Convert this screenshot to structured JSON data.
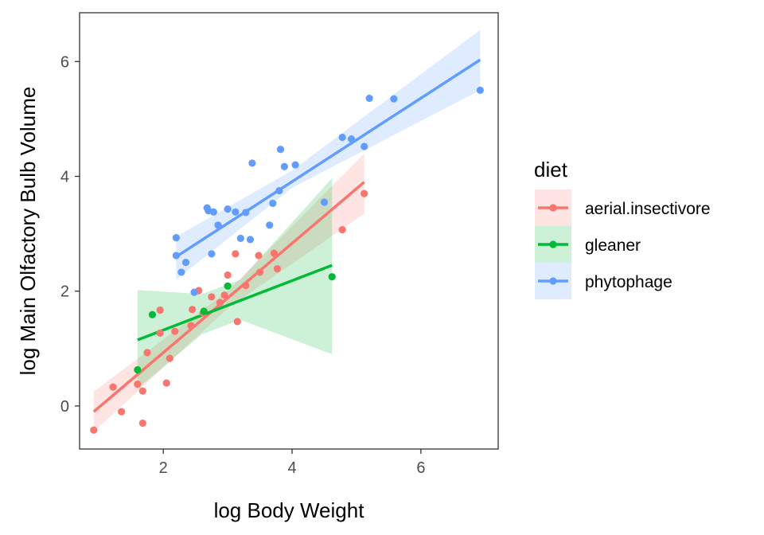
{
  "chart_data": {
    "type": "scatter",
    "xlabel": "log Body Weight",
    "ylabel": "log Main Olfactory Bulb Volume",
    "xlim": [
      0.7,
      7.2
    ],
    "ylim": [
      -0.75,
      6.85
    ],
    "xticks": [
      2,
      4,
      6
    ],
    "yticks": [
      0,
      2,
      4,
      6
    ],
    "grid": false,
    "legend": {
      "title": "diet",
      "placement": "right"
    },
    "series": [
      {
        "name": "aerial.insectivore",
        "color": "#F8766D",
        "fill": "#F8766D",
        "points": [
          [
            0.92,
            -0.42
          ],
          [
            1.22,
            0.33
          ],
          [
            1.35,
            -0.1
          ],
          [
            1.6,
            0.38
          ],
          [
            1.68,
            0.26
          ],
          [
            1.68,
            -0.3
          ],
          [
            1.75,
            0.93
          ],
          [
            1.95,
            1.27
          ],
          [
            1.95,
            1.67
          ],
          [
            2.05,
            0.4
          ],
          [
            2.1,
            0.83
          ],
          [
            2.18,
            1.3
          ],
          [
            2.43,
            1.4
          ],
          [
            2.45,
            1.68
          ],
          [
            2.55,
            2.01
          ],
          [
            2.62,
            1.62
          ],
          [
            2.75,
            1.9
          ],
          [
            2.88,
            1.8
          ],
          [
            2.95,
            1.93
          ],
          [
            3.0,
            2.28
          ],
          [
            3.12,
            2.65
          ],
          [
            3.15,
            1.47
          ],
          [
            3.28,
            2.1
          ],
          [
            3.48,
            2.62
          ],
          [
            3.5,
            2.33
          ],
          [
            3.72,
            2.66
          ],
          [
            3.77,
            2.39
          ],
          [
            4.78,
            3.07
          ],
          [
            5.12,
            3.7
          ]
        ],
        "fit": {
          "x": [
            0.92,
            5.12
          ],
          "y": [
            -0.1,
            3.9
          ]
        },
        "band": {
          "x": [
            0.92,
            3.0,
            5.12
          ],
          "ylow": [
            -0.45,
            1.7,
            3.35
          ],
          "yhigh": [
            0.25,
            2.0,
            4.4
          ]
        }
      },
      {
        "name": "gleaner",
        "color": "#00BA38",
        "fill": "#00BA38",
        "points": [
          [
            1.6,
            0.63
          ],
          [
            1.83,
            1.59
          ],
          [
            2.63,
            1.65
          ],
          [
            3.0,
            2.09
          ],
          [
            4.62,
            2.25
          ]
        ],
        "fit": {
          "x": [
            1.6,
            4.62
          ],
          "y": [
            1.15,
            2.45
          ]
        },
        "band": {
          "x": [
            1.6,
            2.6,
            3.2,
            4.62
          ],
          "ylow": [
            0.3,
            1.25,
            1.5,
            0.9
          ],
          "yhigh": [
            2.02,
            1.95,
            2.2,
            3.97
          ]
        }
      },
      {
        "name": "phytophage",
        "color": "#619CFF",
        "fill": "#619CFF",
        "points": [
          [
            2.2,
            2.93
          ],
          [
            2.2,
            2.62
          ],
          [
            2.28,
            2.33
          ],
          [
            2.35,
            2.5
          ],
          [
            2.48,
            1.98
          ],
          [
            2.68,
            3.45
          ],
          [
            2.7,
            3.4
          ],
          [
            2.75,
            2.65
          ],
          [
            2.78,
            3.38
          ],
          [
            2.85,
            3.15
          ],
          [
            3.0,
            3.43
          ],
          [
            3.12,
            3.38
          ],
          [
            3.2,
            2.92
          ],
          [
            3.28,
            3.37
          ],
          [
            3.35,
            2.9
          ],
          [
            3.38,
            4.23
          ],
          [
            3.65,
            3.15
          ],
          [
            3.7,
            3.53
          ],
          [
            3.8,
            3.75
          ],
          [
            3.82,
            4.47
          ],
          [
            3.88,
            4.17
          ],
          [
            4.05,
            4.2
          ],
          [
            4.5,
            3.55
          ],
          [
            4.78,
            4.68
          ],
          [
            4.92,
            4.65
          ],
          [
            5.12,
            4.52
          ],
          [
            5.2,
            5.36
          ],
          [
            5.58,
            5.35
          ],
          [
            6.92,
            5.5
          ]
        ],
        "fit": {
          "x": [
            2.2,
            6.92
          ],
          "y": [
            2.6,
            6.03
          ]
        },
        "band": {
          "x": [
            2.2,
            4.0,
            6.92
          ],
          "ylow": [
            2.2,
            3.8,
            5.5
          ],
          "yhigh": [
            2.95,
            4.1,
            6.55
          ]
        }
      }
    ]
  }
}
